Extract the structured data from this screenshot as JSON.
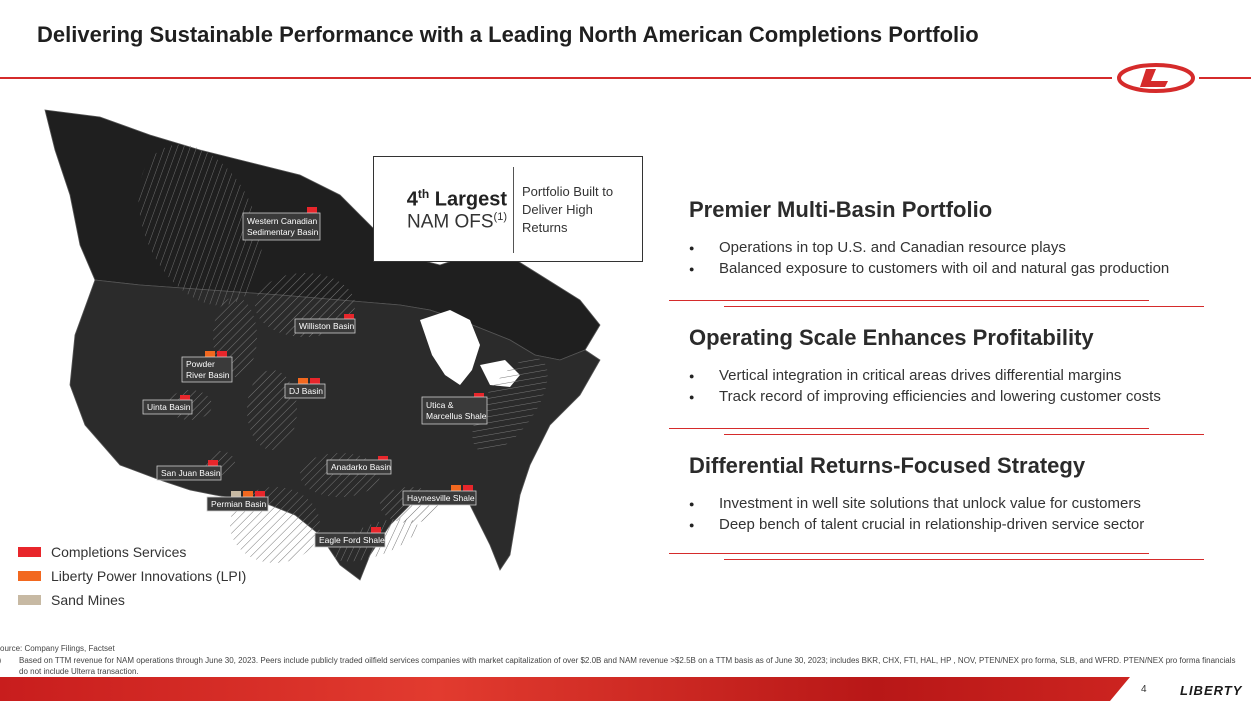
{
  "slide": {
    "title": "Delivering Sustainable Performance with a Leading North American Completions Portfolio",
    "page_number": "4",
    "brand": "LIBERTY"
  },
  "callout": {
    "rank": "4",
    "rank_suffix": "th",
    "rank_word": "Largest",
    "category": "NAM OFS",
    "footnote_ref": "(1)",
    "note": "Portfolio Built to Deliver High Returns"
  },
  "map": {
    "basins": [
      {
        "label": "Western Canadian",
        "label2": "Sedimentary Basin"
      },
      {
        "label": "Williston Basin"
      },
      {
        "label": "Powder",
        "label2": "River Basin"
      },
      {
        "label": "DJ Basin"
      },
      {
        "label": "Uinta Basin"
      },
      {
        "label": "Utica &",
        "label2": "Marcellus Shale"
      },
      {
        "label": "Anadarko Basin"
      },
      {
        "label": "San Juan Basin"
      },
      {
        "label": "Permian Basin"
      },
      {
        "label": "Haynesville Shale"
      },
      {
        "label": "Eagle Ford Shale"
      }
    ]
  },
  "legend": [
    {
      "label": "Completions Services",
      "color": "#e8262b"
    },
    {
      "label": "Liberty Power Innovations (LPI)",
      "color": "#f2681f"
    },
    {
      "label": "Sand Mines",
      "color": "#c7b9a3"
    }
  ],
  "sections": [
    {
      "heading": "Premier Multi-Basin Portfolio",
      "bullets": [
        "Operations in top U.S. and Canadian resource plays",
        "Balanced exposure to customers with oil and natural gas production"
      ]
    },
    {
      "heading": "Operating Scale Enhances Profitability",
      "bullets": [
        "Vertical integration in critical areas drives differential margins",
        "Track record of improving efficiencies and lowering customer costs"
      ]
    },
    {
      "heading": "Differential Returns-Focused Strategy",
      "bullets": [
        "Investment in well site solutions that unlock value for customers",
        "Deep bench of talent crucial in relationship-driven service sector"
      ]
    }
  ],
  "footnotes": {
    "source": "ource: Company Filings, Factset",
    "note_number": "1)",
    "note_text": "Based on TTM revenue for NAM operations through June 30, 2023. Peers include publicly traded oilfield services companies with market capitalization of over $2.0B and NAM revenue >$2.5B on a TTM basis as of June 30, 2023; includes BKR, CHX, FTI, HAL, HP , NOV, PTEN/NEX pro forma, SLB, and WFRD.  PTEN/NEX pro forma financials do not include Ulterra transaction."
  },
  "colors": {
    "accent": "#d52b2b",
    "map_fill": "#2a2a2a"
  }
}
